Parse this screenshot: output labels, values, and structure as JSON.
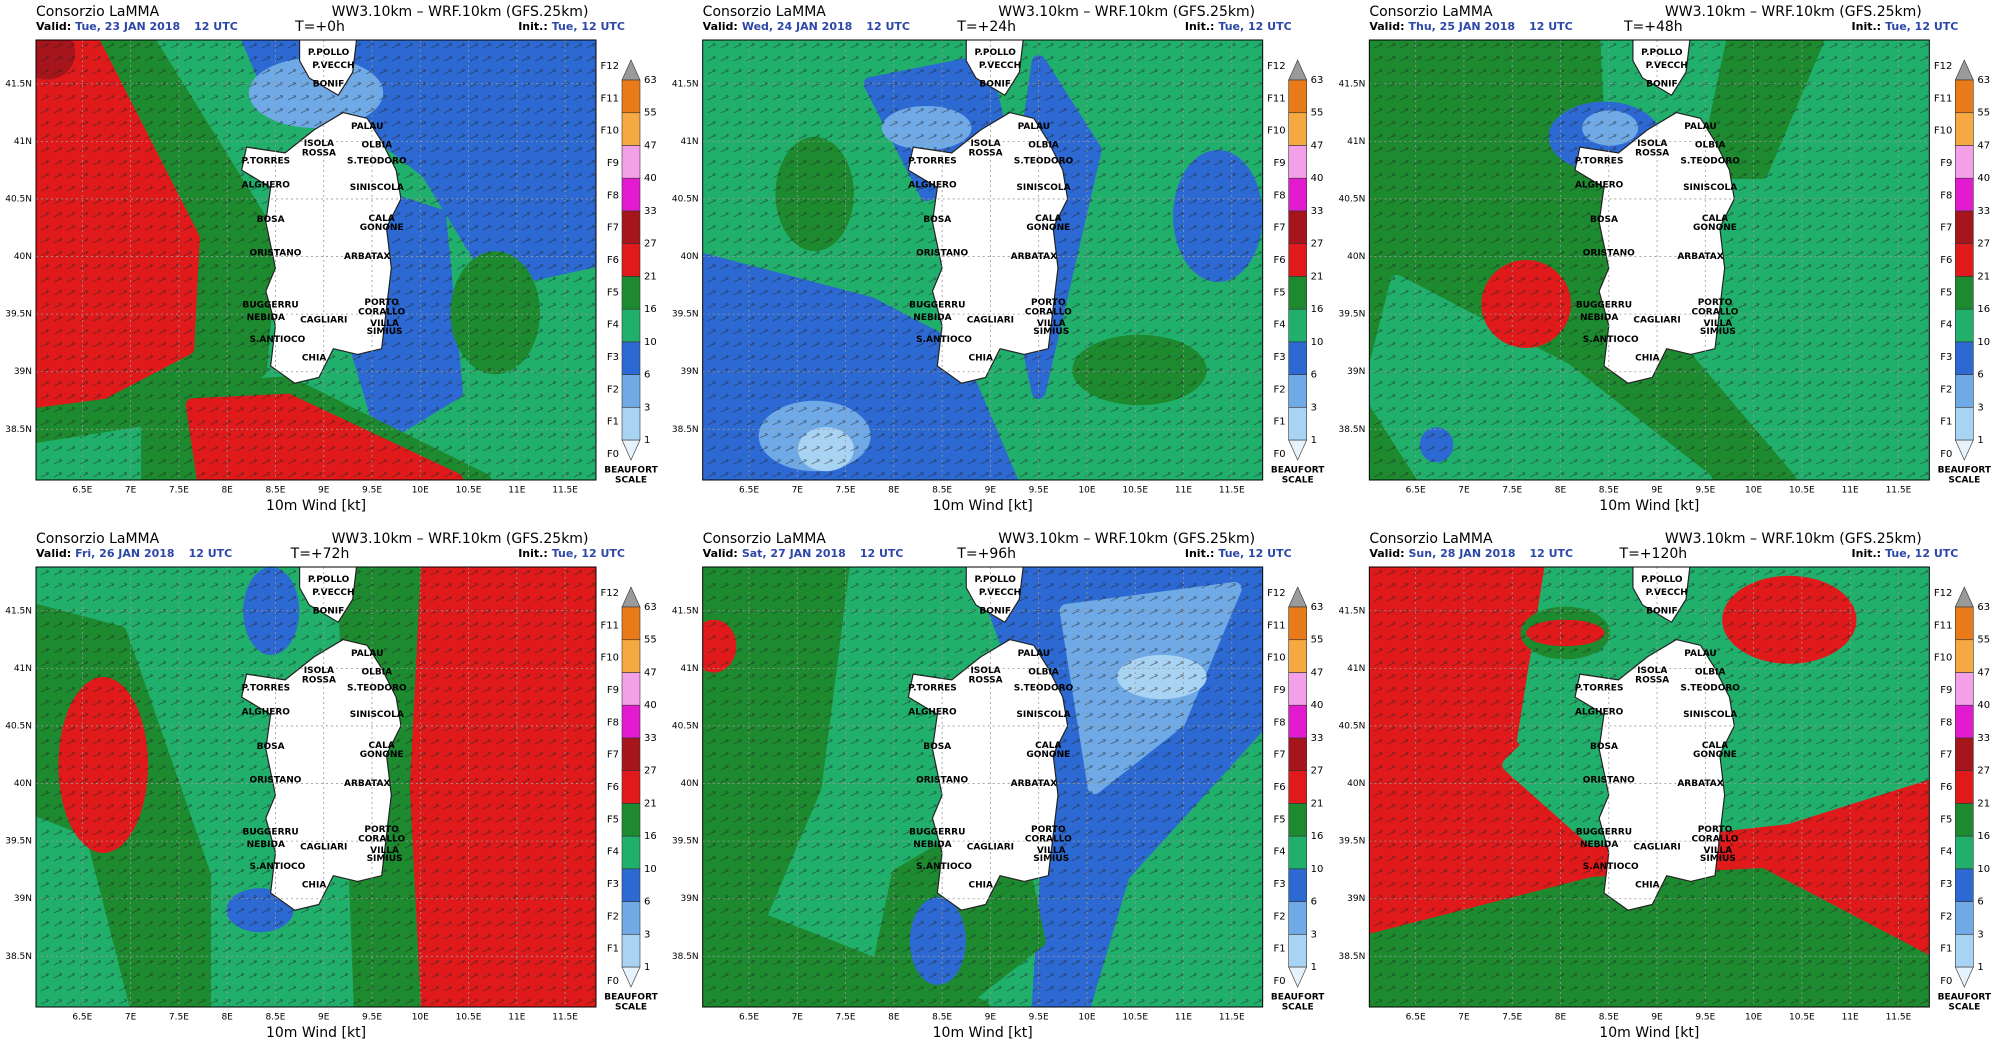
{
  "common": {
    "org": "Consorzio LaMMA",
    "model": "WW3.10km – WRF.10km (GFS.25km)",
    "valid_label": "Valid:",
    "init_label": "Init.:",
    "xlabel": "10m Wind [kt]",
    "scale_title_1": "BEAUFORT",
    "scale_title_2": "SCALE"
  },
  "panels": [
    {
      "valid_date": "Tue, 23 JAN 2018",
      "valid_time": "12 UTC",
      "step": "T=+0h",
      "init": "Tue, 12 UTC"
    },
    {
      "valid_date": "Wed, 24 JAN 2018",
      "valid_time": "12 UTC",
      "step": "T=+24h",
      "init": "Tue, 12 UTC"
    },
    {
      "valid_date": "Thu, 25 JAN 2018",
      "valid_time": "12 UTC",
      "step": "T=+48h",
      "init": "Tue, 12 UTC"
    },
    {
      "valid_date": "Fri, 26 JAN 2018",
      "valid_time": "12 UTC",
      "step": "T=+72h",
      "init": "Tue, 12 UTC"
    },
    {
      "valid_date": "Sat, 27 JAN 2018",
      "valid_time": "12 UTC",
      "step": "T=+96h",
      "init": "Tue, 12 UTC"
    },
    {
      "valid_date": "Sun, 28 JAN 2018",
      "valid_time": "12 UTC",
      "step": "T=+120h",
      "init": "Tue, 12 UTC"
    }
  ],
  "lon_ticks": [
    {
      "value": 6.5,
      "label": "6.5E"
    },
    {
      "value": 7,
      "label": "7E"
    },
    {
      "value": 7.5,
      "label": "7.5E"
    },
    {
      "value": 8,
      "label": "8E"
    },
    {
      "value": 8.5,
      "label": "8.5E"
    },
    {
      "value": 9,
      "label": "9E"
    },
    {
      "value": 9.5,
      "label": "9.5E"
    },
    {
      "value": 10,
      "label": "10E"
    },
    {
      "value": 10.5,
      "label": "10.5E"
    },
    {
      "value": 11,
      "label": "11E"
    },
    {
      "value": 11.5,
      "label": "11.5E"
    }
  ],
  "lat_ticks": [
    {
      "value": 41.5,
      "label": "41.5N"
    },
    {
      "value": 41,
      "label": "41N"
    },
    {
      "value": 40.5,
      "label": "40.5N"
    },
    {
      "value": 40,
      "label": "40N"
    },
    {
      "value": 39.5,
      "label": "39.5N"
    },
    {
      "value": 39,
      "label": "39N"
    },
    {
      "value": 38.5,
      "label": "38.5N"
    }
  ],
  "places": [
    "P.POLLO",
    "P.VECCH",
    "BONIF",
    "PALAU",
    "OLBIA",
    "ISOLA",
    "ROSSA",
    "P.TORRES",
    "S.TEODORO",
    "ALGHERO",
    "SINISCOLA",
    "BOSA",
    "CALA",
    "GONONE",
    "ORISTANO",
    "ARBATAX",
    "BUGGERRU",
    "NEBIDA",
    "CAGLIARI",
    "PORTO",
    "CORALLO",
    "VILLA",
    "SIMIUS",
    "S.ANTIOCO",
    "CHIA"
  ],
  "scale": {
    "forces": [
      "F0",
      "F1",
      "F2",
      "F3",
      "F4",
      "F5",
      "F6",
      "F7",
      "F8",
      "F9",
      "F10",
      "F11",
      "F12"
    ],
    "knots": [
      "1",
      "3",
      "6",
      "10",
      "16",
      "21",
      "27",
      "33",
      "40",
      "47",
      "55",
      "63"
    ],
    "colors": [
      "#a9d3f3",
      "#6fa9e6",
      "#2d69d2",
      "#21b06c",
      "#1d8a2f",
      "#e01a1a",
      "#a5151b",
      "#e21bd0",
      "#f4a0e9",
      "#f6a843",
      "#ea7b1b"
    ],
    "low_color": "#e6f3fc",
    "high_color": "#9a9a9a"
  }
}
